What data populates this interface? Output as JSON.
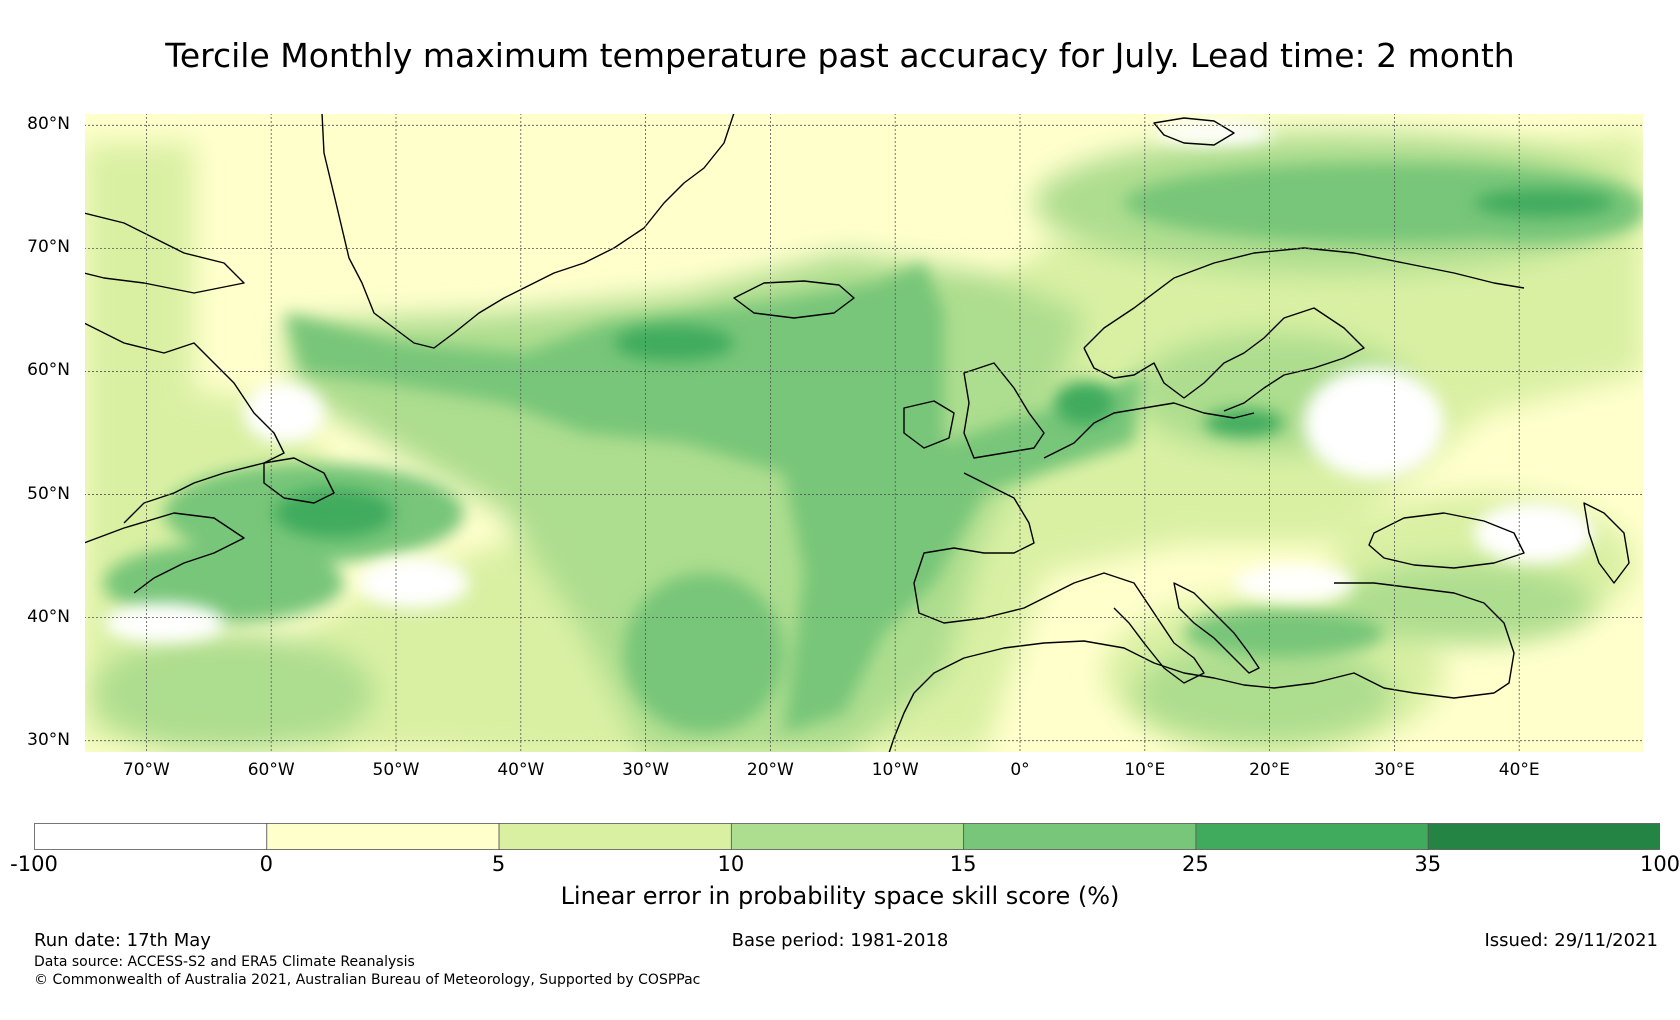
{
  "title": "Tercile Monthly maximum temperature past accuracy for July. Lead time: 2 month",
  "map": {
    "lat_labels": [
      "80°N",
      "70°N",
      "60°N",
      "50°N",
      "40°N",
      "30°N"
    ],
    "lat_values": [
      80,
      70,
      60,
      50,
      40,
      30
    ],
    "lon_labels": [
      "70°W",
      "60°W",
      "50°W",
      "40°W",
      "30°W",
      "20°W",
      "10°W",
      "0°",
      "10°E",
      "20°E",
      "30°E",
      "40°E"
    ],
    "lon_values": [
      -70,
      -60,
      -50,
      -40,
      -30,
      -20,
      -10,
      0,
      10,
      20,
      30,
      40
    ],
    "extent": {
      "lon_min": -75,
      "lon_max": 50,
      "lat_min": 29,
      "lat_max": 81
    },
    "gridlines": true
  },
  "colorbar": {
    "bounds": [
      "-100",
      "0",
      "5",
      "10",
      "15",
      "25",
      "35",
      "100"
    ],
    "colors": [
      "#ffffff",
      "#ffffcc",
      "#d9f0a3",
      "#addd8e",
      "#78c679",
      "#41ab5d",
      "#238443"
    ],
    "label": "Linear error in probability space skill score (%)"
  },
  "footer": {
    "run_date": "Run date: 17th May",
    "base_period": "Base period: 1981-2018",
    "issued": "Issued: 29/11/2021",
    "data_source": "Data source: ACCESS-S2 and ERA5 Climate Reanalysis",
    "copyright": "© Commonwealth of Australia 2021, Australian Bureau of Meteorology, Supported by COSPPac"
  }
}
